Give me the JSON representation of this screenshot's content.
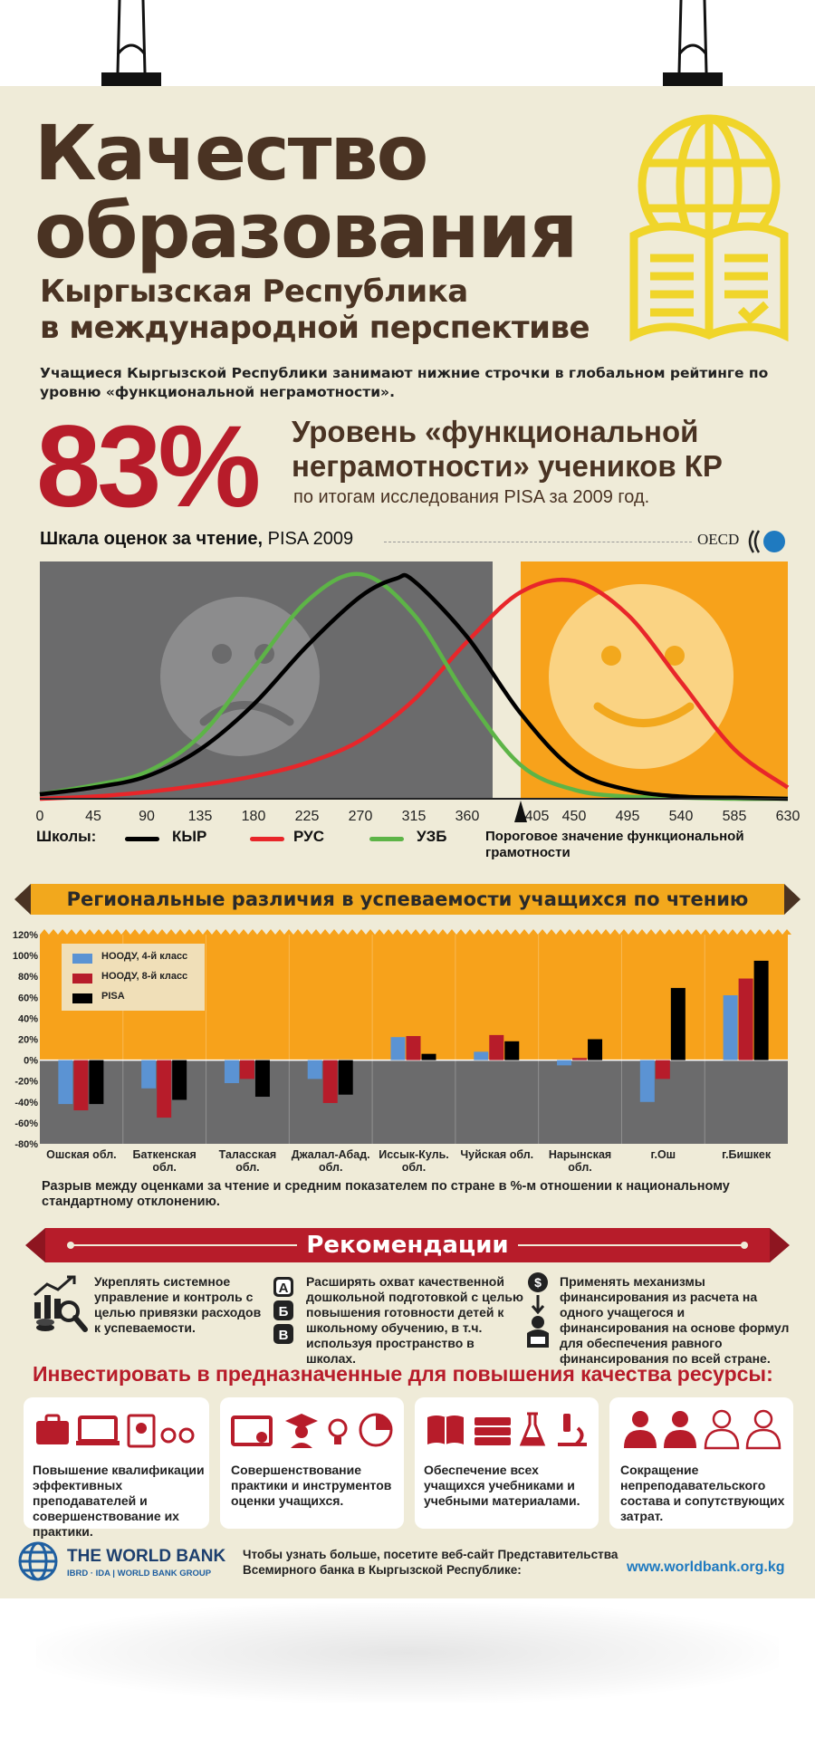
{
  "title_line1": "Качество",
  "title_line2": "образования",
  "subtitle_line1": "Кыргызская Республика",
  "subtitle_line2": "в международной перспективе",
  "intro": "Учащиеся Кыргызской Республики занимают нижние строчки в глобальном рейтинге по уровню «функциональной неграмотности».",
  "stat": {
    "value": "83%",
    "heading_line1": "Уровень «функциональной",
    "heading_line2": "неграмотности» учеников КР",
    "note": "по итогам исследования PISA за 2009 год."
  },
  "colors": {
    "brown": "#4a3323",
    "red": "#b71c2a",
    "orange": "#f7a21b",
    "gray": "#6b6b6c",
    "yellow": "#f0d52a",
    "blue": "#5b93d3"
  },
  "chart_data": [
    {
      "type": "line",
      "title": "Шкала оценок за чтение,",
      "title_suffix": "PISA 2009",
      "source": "OECD",
      "x_ticks": [
        "0",
        "45",
        "90",
        "135",
        "180",
        "225",
        "270",
        "315",
        "360",
        "405",
        "450",
        "495",
        "540",
        "585",
        "630"
      ],
      "xlim": [
        0,
        630
      ],
      "threshold": 405,
      "threshold_label": "Пороговое значение функциональной грамотности",
      "legend_title": "Школы:",
      "series": [
        {
          "name": "КЫР",
          "color": "#000000",
          "x": [
            0,
            45,
            90,
            135,
            180,
            225,
            270,
            300,
            315,
            360,
            405,
            450,
            495,
            540,
            585,
            630
          ],
          "y": [
            0.02,
            0.05,
            0.1,
            0.22,
            0.42,
            0.68,
            0.9,
            0.98,
            0.97,
            0.72,
            0.38,
            0.13,
            0.04,
            0.01,
            0.005,
            0
          ]
        },
        {
          "name": "РУС",
          "color": "#e8262a",
          "x": [
            0,
            45,
            90,
            135,
            180,
            225,
            270,
            315,
            360,
            405,
            450,
            495,
            540,
            585,
            630
          ],
          "y": [
            0,
            0.01,
            0.03,
            0.06,
            0.1,
            0.16,
            0.26,
            0.44,
            0.7,
            0.92,
            0.97,
            0.82,
            0.52,
            0.22,
            0.05
          ]
        },
        {
          "name": "УЗБ",
          "color": "#5db447",
          "x": [
            0,
            45,
            90,
            135,
            180,
            225,
            270,
            315,
            360,
            405,
            450,
            495,
            540,
            585,
            630
          ],
          "y": [
            0.02,
            0.06,
            0.12,
            0.28,
            0.58,
            0.88,
            1.0,
            0.82,
            0.45,
            0.15,
            0.04,
            0.01,
            0.005,
            0,
            0
          ]
        }
      ]
    },
    {
      "type": "bar",
      "title": "Региональные различия в успеваемости учащихся по чтению",
      "y_ticks": [
        "120%",
        "100%",
        "80%",
        "60%",
        "40%",
        "20%",
        "0%",
        "-20%",
        "-40%",
        "-60%",
        "-80%"
      ],
      "ylim": [
        -80,
        120
      ],
      "categories": [
        "Ошская обл.",
        "Баткенская обл.",
        "Таласская обл.",
        "Джалал-Абад. обл.",
        "Иссык-Куль. обл.",
        "Чуйская обл.",
        "Нарынская обл.",
        "г.Ош",
        "г.Бишкек"
      ],
      "series": [
        {
          "name": "НООДУ, 4-й класс",
          "color": "#5b93d3",
          "values": [
            -42,
            -27,
            -22,
            -18,
            22,
            8,
            -5,
            -40,
            62
          ]
        },
        {
          "name": "НООДУ, 8-й класс",
          "color": "#b71c2a",
          "values": [
            -48,
            -55,
            -18,
            -41,
            23,
            24,
            2,
            -18,
            78
          ]
        },
        {
          "name": "PISA",
          "color": "#000000",
          "values": [
            -42,
            -38,
            -35,
            -33,
            6,
            18,
            20,
            69,
            95
          ]
        }
      ],
      "caption": "Разрыв между оценками за чтение и средним показателем по стране в %-м отношении к национальному стандартному отклонению."
    }
  ],
  "recommendations": {
    "title": "Рекомендации",
    "items": [
      "Укреплять системное управление и контроль с целью привязки расходов к успеваемости.",
      "Расширять охват качественной дошкольной подготовкой с целью повышения готовности детей к школьному обучению, в т.ч. используя  пространство в школах.",
      "Применять механизмы финансирования из расчета на одного учащегося и финансирования на основе формул для обеспечения равного финансирования по всей стране."
    ]
  },
  "invest": {
    "title": "Инвестировать в предназначенные для повышения качества ресурсы:",
    "cards": [
      "Повышение квалификации эффективных преподавателей и совершенствование их практики.",
      "Совершенствование практики и инструментов оценки учащихся.",
      "Обеспечение всех учащихся учебниками и учебными материалами.",
      "Сокращение непреподавательского состава и сопутствующих затрат."
    ]
  },
  "footer": {
    "org": "THE WORLD BANK",
    "org_sub": "IBRD · IDA | WORLD BANK GROUP",
    "text": "Чтобы узнать больше, посетите веб-сайт Представительства Всемирного банка в Кыргызской Республике:",
    "url": "www.worldbank.org.kg"
  }
}
